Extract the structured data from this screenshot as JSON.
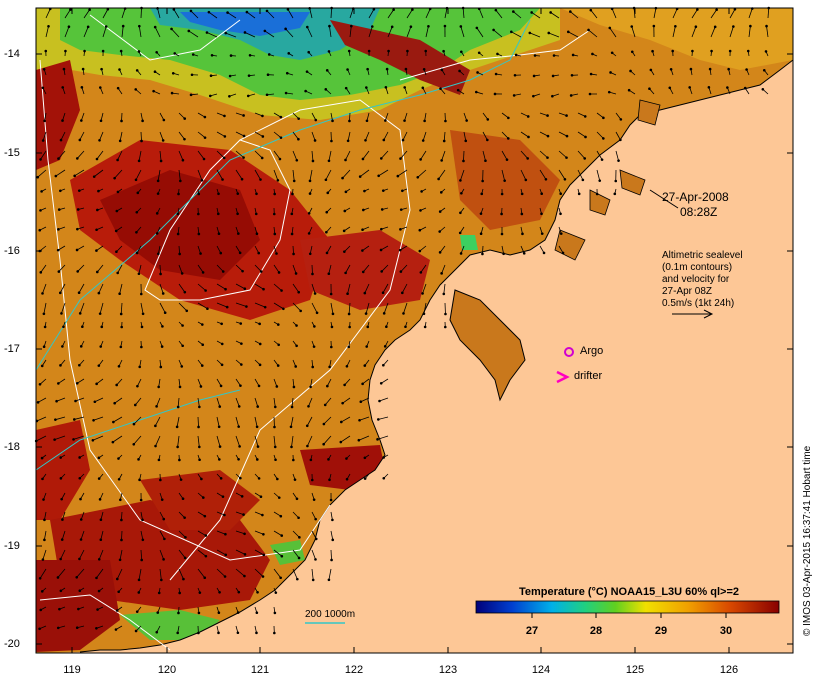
{
  "map": {
    "lat_ticks": [
      "-14",
      "-15",
      "-16",
      "-17",
      "-18",
      "-19",
      "-20"
    ],
    "lon_ticks": [
      "119",
      "120",
      "121",
      "122",
      "123",
      "124",
      "125",
      "126"
    ],
    "date_line1": "27-Apr-2008",
    "date_line2": "08:28Z",
    "legend_lines": [
      "Altimetric sealevel",
      "(0.1m contours)",
      "and velocity for",
      "27-Apr 08Z",
      "0.5m/s (1kt 24h)"
    ],
    "argo_label": "Argo",
    "drifter_label": "drifter",
    "isobath_label": "200  1000m",
    "colorbar_title": "Temperature (°C) NOAA15_L3U 60% ql>=2",
    "colorbar_ticks": [
      "27",
      "28",
      "29",
      "30"
    ],
    "credit": "© IMOS 03-Apr-2015 16:37:41 Hobart time",
    "colors": {
      "land": "#fdc796",
      "sst_warm": "#b01a08",
      "sst_mid": "#d8860f",
      "sst_cool": "#3cc84a",
      "sst_cold": "#1a5fd0",
      "isobath": "#33c7c7",
      "argo": "#d000d0"
    }
  }
}
